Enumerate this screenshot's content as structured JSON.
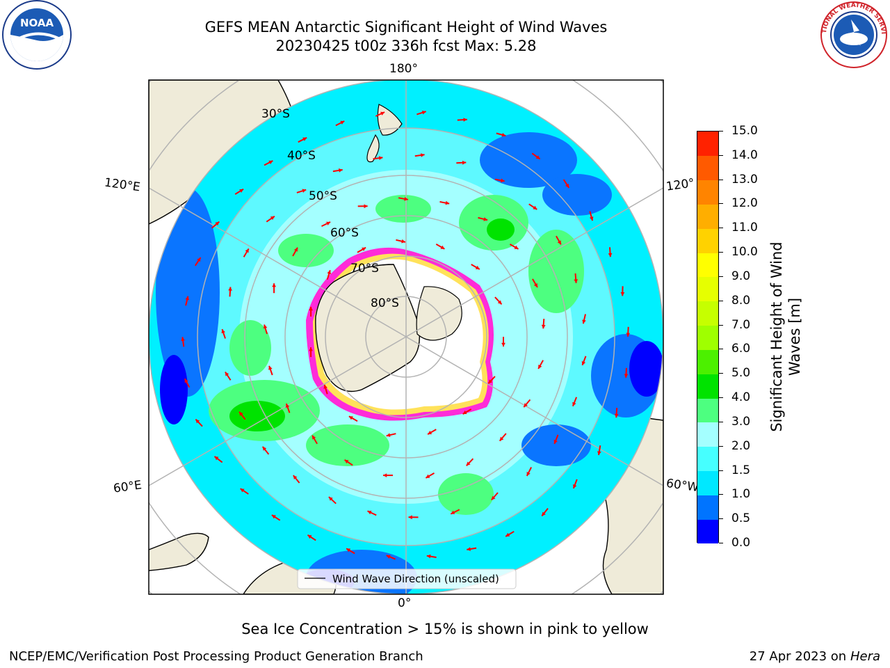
{
  "header": {
    "title_line1": "GEFS MEAN Antarctic Significant Height of Wind Waves",
    "title_line2": "20230425 t00z 336h fcst   Max: 5.28"
  },
  "logos": {
    "left": "noaa-logo",
    "left_text": "NOAA",
    "right": "national-weather-service-logo",
    "right_text": "NATIONAL WEATHER SERVICE"
  },
  "map": {
    "projection": "south-polar-stereographic",
    "longitude_labels": {
      "top": "180°",
      "bottom": "0°",
      "left_upper": "120°E",
      "left_lower": "60°E",
      "right_upper": "120°",
      "right_lower": "60°W"
    },
    "latitude_labels": [
      "30°S",
      "40°S",
      "50°S",
      "60°S",
      "70°S",
      "80°S"
    ],
    "legend_label": "Wind Wave Direction (unscaled)",
    "colors": {
      "land": "#efebd9",
      "ice_edge": "#ff2bd8",
      "ice_inner": "#ffe25a",
      "arrow": "#ff0000",
      "graticule": "#b3b3b3"
    }
  },
  "colorbar": {
    "label": "Significant Height of Wind Waves [m]",
    "ticks": [
      "0.0",
      "0.5",
      "1.0",
      "1.5",
      "2.0",
      "3.0",
      "4.0",
      "5.0",
      "6.0",
      "7.0",
      "8.0",
      "9.0",
      "10.0",
      "11.0",
      "12.0",
      "13.0",
      "14.0",
      "15.0"
    ],
    "colors": [
      "#0000ff",
      "#0074ff",
      "#00e8ff",
      "#46ffff",
      "#a4ffff",
      "#4dff80",
      "#00e300",
      "#4cf000",
      "#9fff00",
      "#c6ff00",
      "#e6ff00",
      "#ffff00",
      "#ffd200",
      "#ffae00",
      "#ff8400",
      "#ff5a00",
      "#ff2200"
    ]
  },
  "footnote": "Sea Ice Concentration > 15% is shown in pink to yellow",
  "credits": {
    "left": "NCEP/EMC/Verification Post Processing Product Generation Branch",
    "right_prefix": "27 Apr 2023 on ",
    "right_machine": "Hera"
  }
}
